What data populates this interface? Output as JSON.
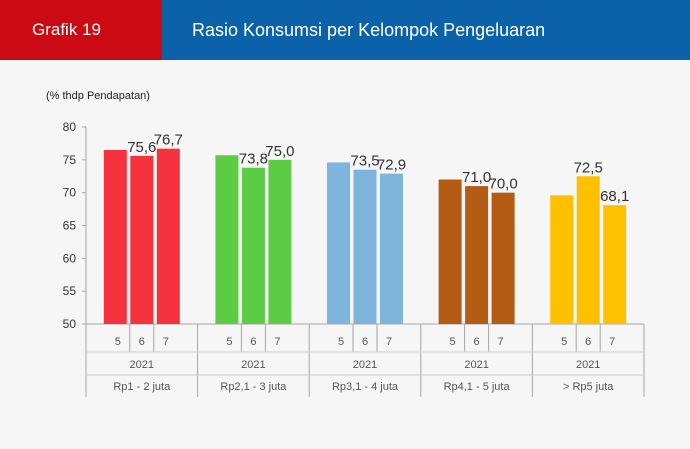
{
  "header": {
    "label": "Grafik 19",
    "title": "Rasio Konsumsi per Kelompok Pengeluaran"
  },
  "chart_data": {
    "type": "bar",
    "ylabel": "(% thdp Pendapatan)",
    "ylim": [
      50,
      80
    ],
    "yticks": [
      50,
      55,
      60,
      65,
      70,
      75,
      80
    ],
    "grid": false,
    "legend": "none",
    "groups": [
      {
        "name": "Rp1 - 2 juta",
        "year": "2021",
        "months": [
          "5",
          "6",
          "7"
        ],
        "values": [
          76.5,
          75.6,
          76.7
        ],
        "labels": [
          "",
          "75,6",
          "76,7"
        ],
        "color": "#f5333f"
      },
      {
        "name": "Rp2,1 - 3 juta",
        "year": "2021",
        "months": [
          "5",
          "6",
          "7"
        ],
        "values": [
          75.7,
          73.8,
          75.0
        ],
        "labels": [
          "",
          "73,8",
          "75,0"
        ],
        "color": "#5dcc45"
      },
      {
        "name": "Rp3,1 - 4 juta",
        "year": "2021",
        "months": [
          "5",
          "6",
          "7"
        ],
        "values": [
          74.6,
          73.5,
          72.9
        ],
        "labels": [
          "",
          "73,5",
          "72,9"
        ],
        "color": "#7fb5dc"
      },
      {
        "name": "Rp4,1 - 5 juta",
        "year": "2021",
        "months": [
          "5",
          "6",
          "7"
        ],
        "values": [
          72.0,
          71.0,
          70.0
        ],
        "labels": [
          "",
          "71,0",
          "70,0"
        ],
        "color": "#b45b14"
      },
      {
        "name": "> Rp5 juta",
        "year": "2021",
        "months": [
          "5",
          "6",
          "7"
        ],
        "values": [
          69.6,
          72.5,
          68.1
        ],
        "labels": [
          "",
          "72,5",
          "68,1"
        ],
        "color": "#ffc000"
      }
    ]
  }
}
